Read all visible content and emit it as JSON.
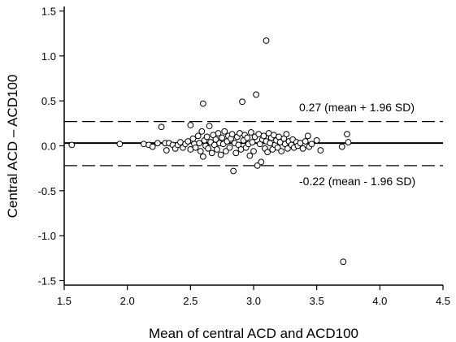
{
  "chart_data": {
    "type": "scatter",
    "xlabel": "Mean of central ACD and ACD100",
    "ylabel": "Central ACD – ACD100",
    "xlim": [
      1.5,
      4.5
    ],
    "ylim": [
      -1.55,
      1.55
    ],
    "x_ticks": [
      "1.5",
      "2.0",
      "2.5",
      "3.0",
      "3.5",
      "4.0",
      "4.5"
    ],
    "y_ticks": [
      "1.5",
      "1.0",
      "0.5",
      "0.0",
      "-0.5",
      "-1.0",
      "-1.5"
    ],
    "grid": false,
    "reference_lines": {
      "mean": 0.03,
      "upper": 0.27,
      "lower": -0.22
    },
    "annotations": {
      "upper_label": "0.27 (mean + 1.96 SD)",
      "lower_label": "-0.22 (mean - 1.96 SD)"
    },
    "points": [
      {
        "x": 1.56,
        "y": 0.01
      },
      {
        "x": 1.94,
        "y": 0.02
      },
      {
        "x": 2.13,
        "y": 0.02
      },
      {
        "x": 2.17,
        "y": 0.01
      },
      {
        "x": 2.2,
        "y": -0.01
      },
      {
        "x": 2.24,
        "y": 0.03
      },
      {
        "x": 2.27,
        "y": 0.21
      },
      {
        "x": 2.3,
        "y": 0.03
      },
      {
        "x": 2.31,
        "y": -0.05
      },
      {
        "x": 2.33,
        "y": 0.03
      },
      {
        "x": 2.36,
        "y": 0.01
      },
      {
        "x": 2.38,
        "y": -0.03
      },
      {
        "x": 2.4,
        "y": 0.01
      },
      {
        "x": 2.42,
        "y": 0.04
      },
      {
        "x": 2.44,
        "y": -0.02
      },
      {
        "x": 2.46,
        "y": 0.02
      },
      {
        "x": 2.48,
        "y": 0.05
      },
      {
        "x": 2.5,
        "y": 0.23
      },
      {
        "x": 2.5,
        "y": -0.04
      },
      {
        "x": 2.52,
        "y": 0.08
      },
      {
        "x": 2.53,
        "y": 0.02
      },
      {
        "x": 2.54,
        "y": -0.02
      },
      {
        "x": 2.56,
        "y": 0.11
      },
      {
        "x": 2.57,
        "y": 0.03
      },
      {
        "x": 2.58,
        "y": -0.06
      },
      {
        "x": 2.59,
        "y": 0.16
      },
      {
        "x": 2.6,
        "y": 0.47
      },
      {
        "x": 2.6,
        "y": -0.12
      },
      {
        "x": 2.61,
        "y": 0.06
      },
      {
        "x": 2.62,
        "y": 0.0
      },
      {
        "x": 2.63,
        "y": 0.1
      },
      {
        "x": 2.64,
        "y": -0.03
      },
      {
        "x": 2.65,
        "y": 0.22
      },
      {
        "x": 2.66,
        "y": 0.04
      },
      {
        "x": 2.67,
        "y": -0.08
      },
      {
        "x": 2.68,
        "y": 0.12
      },
      {
        "x": 2.69,
        "y": 0.01
      },
      {
        "x": 2.7,
        "y": 0.07
      },
      {
        "x": 2.71,
        "y": -0.04
      },
      {
        "x": 2.72,
        "y": 0.14
      },
      {
        "x": 2.73,
        "y": 0.03
      },
      {
        "x": 2.74,
        "y": -0.1
      },
      {
        "x": 2.75,
        "y": 0.09
      },
      {
        "x": 2.76,
        "y": 0.02
      },
      {
        "x": 2.77,
        "y": 0.16
      },
      {
        "x": 2.78,
        "y": -0.06
      },
      {
        "x": 2.79,
        "y": 0.05
      },
      {
        "x": 2.8,
        "y": 0.11
      },
      {
        "x": 2.81,
        "y": -0.02
      },
      {
        "x": 2.82,
        "y": 0.08
      },
      {
        "x": 2.83,
        "y": 0.13
      },
      {
        "x": 2.84,
        "y": -0.28
      },
      {
        "x": 2.85,
        "y": 0.03
      },
      {
        "x": 2.86,
        "y": -0.08
      },
      {
        "x": 2.87,
        "y": 0.1
      },
      {
        "x": 2.88,
        "y": 0.01
      },
      {
        "x": 2.89,
        "y": 0.14
      },
      {
        "x": 2.9,
        "y": -0.04
      },
      {
        "x": 2.91,
        "y": 0.49
      },
      {
        "x": 2.92,
        "y": 0.06
      },
      {
        "x": 2.93,
        "y": 0.12
      },
      {
        "x": 2.94,
        "y": -0.02
      },
      {
        "x": 2.95,
        "y": 0.09
      },
      {
        "x": 2.96,
        "y": 0.02
      },
      {
        "x": 2.97,
        "y": -0.11
      },
      {
        "x": 2.98,
        "y": 0.15
      },
      {
        "x": 2.99,
        "y": 0.04
      },
      {
        "x": 3.0,
        "y": -0.06
      },
      {
        "x": 3.01,
        "y": 0.1
      },
      {
        "x": 3.02,
        "y": 0.57
      },
      {
        "x": 3.03,
        "y": -0.22
      },
      {
        "x": 3.04,
        "y": 0.13
      },
      {
        "x": 3.05,
        "y": 0.02
      },
      {
        "x": 3.06,
        "y": -0.18
      },
      {
        "x": 3.07,
        "y": 0.07
      },
      {
        "x": 3.08,
        "y": 0.11
      },
      {
        "x": 3.09,
        "y": -0.03
      },
      {
        "x": 3.1,
        "y": 1.17
      },
      {
        "x": 3.1,
        "y": 0.05
      },
      {
        "x": 3.11,
        "y": -0.07
      },
      {
        "x": 3.12,
        "y": 0.14
      },
      {
        "x": 3.13,
        "y": 0.03
      },
      {
        "x": 3.14,
        "y": 0.09
      },
      {
        "x": 3.15,
        "y": -0.04
      },
      {
        "x": 3.16,
        "y": 0.12
      },
      {
        "x": 3.17,
        "y": 0.01
      },
      {
        "x": 3.18,
        "y": 0.06
      },
      {
        "x": 3.19,
        "y": -0.02
      },
      {
        "x": 3.2,
        "y": 0.1
      },
      {
        "x": 3.21,
        "y": 0.04
      },
      {
        "x": 3.22,
        "y": -0.06
      },
      {
        "x": 3.24,
        "y": 0.08
      },
      {
        "x": 3.25,
        "y": 0.02
      },
      {
        "x": 3.26,
        "y": 0.13
      },
      {
        "x": 3.27,
        "y": -0.03
      },
      {
        "x": 3.28,
        "y": 0.05
      },
      {
        "x": 3.3,
        "y": 0.01
      },
      {
        "x": 3.31,
        "y": 0.07
      },
      {
        "x": 3.32,
        "y": -0.02
      },
      {
        "x": 3.34,
        "y": 0.04
      },
      {
        "x": 3.35,
        "y": 0.0
      },
      {
        "x": 3.37,
        "y": 0.03
      },
      {
        "x": 3.39,
        "y": -0.03
      },
      {
        "x": 3.41,
        "y": 0.05
      },
      {
        "x": 3.43,
        "y": 0.11
      },
      {
        "x": 3.44,
        "y": -0.01
      },
      {
        "x": 3.46,
        "y": 0.02
      },
      {
        "x": 3.5,
        "y": 0.06
      },
      {
        "x": 3.53,
        "y": -0.05
      },
      {
        "x": 3.7,
        "y": -0.01
      },
      {
        "x": 3.71,
        "y": -1.29
      },
      {
        "x": 3.74,
        "y": 0.13
      },
      {
        "x": 3.75,
        "y": 0.04
      }
    ]
  }
}
